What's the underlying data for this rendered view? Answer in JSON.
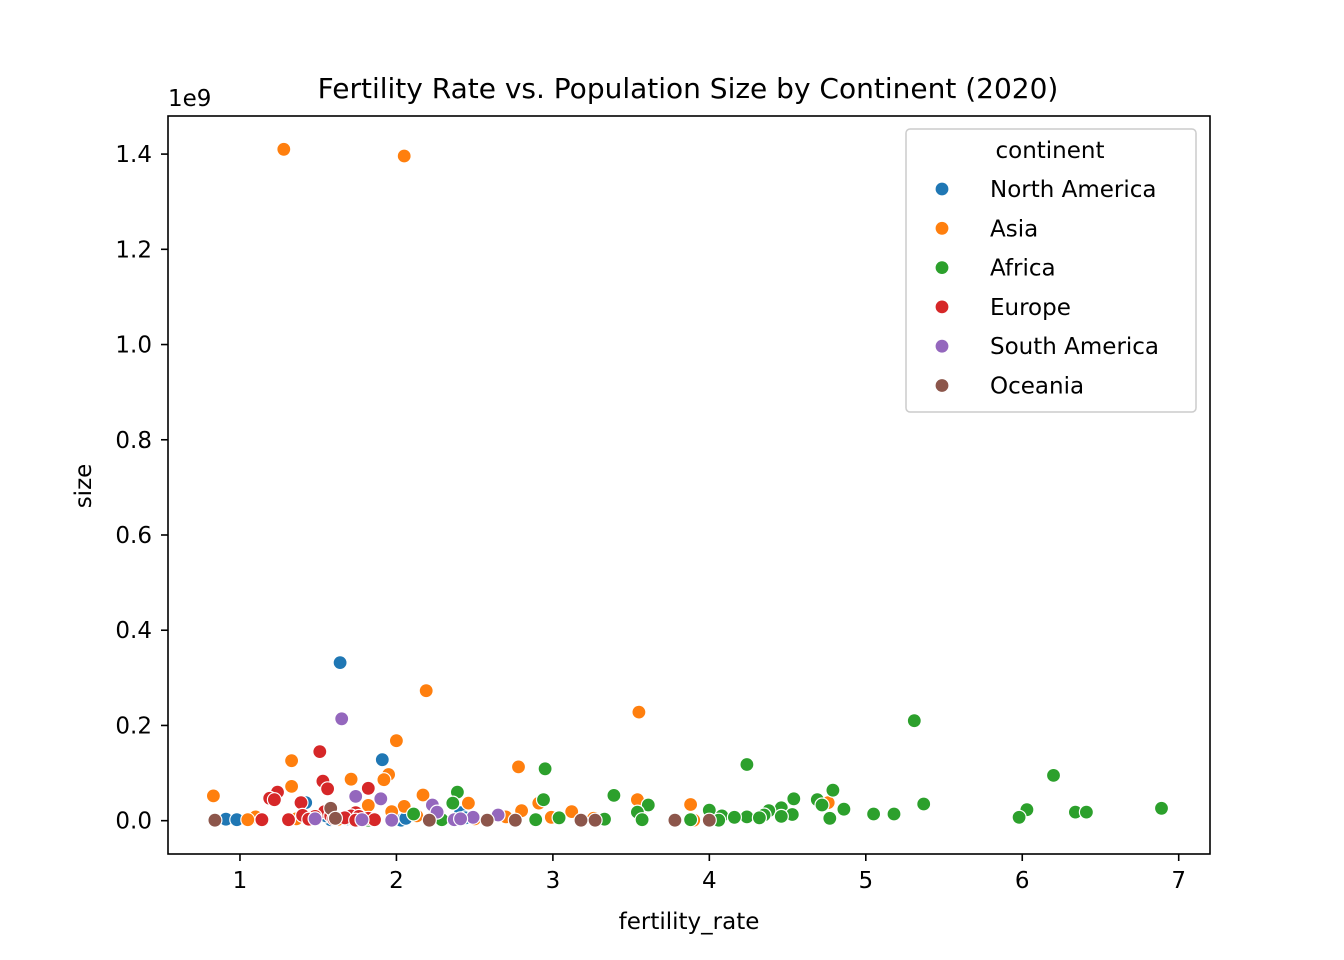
{
  "chart_data": {
    "type": "scatter",
    "title": "Fertility Rate vs. Population Size by Continent (2020)",
    "xlabel": "fertility_rate",
    "ylabel": "size",
    "y_offset_label": "1e9",
    "xlim": [
      0.54,
      7.2
    ],
    "ylim": [
      -70000000,
      1480000000
    ],
    "x_ticks": [
      1,
      2,
      3,
      4,
      5,
      6,
      7
    ],
    "x_tick_labels": [
      "1",
      "2",
      "3",
      "4",
      "5",
      "6",
      "7"
    ],
    "y_ticks": [
      0,
      200000000,
      400000000,
      600000000,
      800000000,
      1000000000,
      1200000000,
      1400000000
    ],
    "y_tick_labels": [
      "0.0",
      "0.2",
      "0.4",
      "0.6",
      "0.8",
      "1.0",
      "1.2",
      "1.4"
    ],
    "grid": false,
    "legend": {
      "title": "continent",
      "placement": "top-right"
    },
    "series": [
      {
        "name": "North America",
        "color": "#1f77b4",
        "points": [
          [
            0.91,
            3000000
          ],
          [
            0.98,
            2000000
          ],
          [
            1.64,
            332000000
          ],
          [
            1.91,
            128000000
          ],
          [
            1.58,
            2000000
          ],
          [
            1.63,
            1000000
          ],
          [
            1.69,
            4000000
          ],
          [
            1.81,
            3000000
          ],
          [
            2.03,
            1000000
          ],
          [
            2.41,
            17000000
          ],
          [
            2.44,
            6000000
          ],
          [
            1.42,
            38000000
          ],
          [
            1.55,
            10000000
          ],
          [
            1.75,
            2000000
          ],
          [
            2.06,
            5000000
          ]
        ]
      },
      {
        "name": "Asia",
        "color": "#ff7f0e",
        "points": [
          [
            1.28,
            1410000000
          ],
          [
            2.05,
            1396000000
          ],
          [
            2.19,
            273000000
          ],
          [
            3.55,
            228000000
          ],
          [
            2.0,
            168000000
          ],
          [
            1.33,
            126000000
          ],
          [
            2.78,
            113000000
          ],
          [
            1.95,
            97000000
          ],
          [
            1.71,
            87000000
          ],
          [
            1.92,
            86000000
          ],
          [
            1.33,
            72000000
          ],
          [
            0.83,
            52000000
          ],
          [
            2.17,
            54000000
          ],
          [
            3.54,
            44000000
          ],
          [
            2.46,
            37000000
          ],
          [
            2.91,
            37000000
          ],
          [
            3.88,
            34000000
          ],
          [
            4.76,
            38000000
          ],
          [
            1.82,
            32000000
          ],
          [
            2.05,
            30000000
          ],
          [
            1.97,
            19000000
          ],
          [
            2.8,
            21000000
          ],
          [
            3.12,
            19000000
          ],
          [
            1.1,
            8000000
          ],
          [
            2.13,
            10000000
          ],
          [
            2.7,
            8000000
          ],
          [
            3.57,
            5000000
          ],
          [
            1.36,
            4000000
          ],
          [
            2.99,
            7000000
          ],
          [
            3.26,
            5000000
          ],
          [
            1.48,
            6000000
          ],
          [
            1.86,
            4000000
          ],
          [
            2.5,
            4000000
          ],
          [
            1.05,
            2000000
          ],
          [
            1.63,
            3000000
          ],
          [
            3.9,
            1000000
          ]
        ]
      },
      {
        "name": "Africa",
        "color": "#2ca02c",
        "points": [
          [
            5.31,
            210000000
          ],
          [
            4.24,
            118000000
          ],
          [
            2.95,
            109000000
          ],
          [
            6.2,
            95000000
          ],
          [
            4.79,
            64000000
          ],
          [
            2.39,
            60000000
          ],
          [
            3.39,
            53000000
          ],
          [
            4.54,
            46000000
          ],
          [
            2.94,
            44000000
          ],
          [
            4.69,
            44000000
          ],
          [
            2.36,
            37000000
          ],
          [
            5.37,
            35000000
          ],
          [
            4.72,
            33000000
          ],
          [
            3.61,
            33000000
          ],
          [
            4.46,
            27000000
          ],
          [
            6.89,
            26000000
          ],
          [
            4.86,
            24000000
          ],
          [
            6.03,
            23000000
          ],
          [
            4.0,
            22000000
          ],
          [
            4.38,
            21000000
          ],
          [
            6.34,
            18000000
          ],
          [
            6.41,
            18000000
          ],
          [
            3.54,
            18000000
          ],
          [
            2.11,
            14000000
          ],
          [
            5.05,
            14000000
          ],
          [
            5.18,
            14000000
          ],
          [
            4.53,
            13000000
          ],
          [
            4.35,
            12000000
          ],
          [
            4.08,
            10000000
          ],
          [
            4.46,
            9000000
          ],
          [
            3.04,
            6000000
          ],
          [
            4.24,
            8000000
          ],
          [
            4.16,
            7000000
          ],
          [
            4.32,
            6000000
          ],
          [
            5.98,
            7000000
          ],
          [
            4.77,
            5000000
          ],
          [
            3.88,
            2000000
          ],
          [
            3.33,
            3000000
          ],
          [
            2.29,
            2000000
          ],
          [
            2.89,
            2000000
          ],
          [
            1.82,
            1000000
          ],
          [
            1.73,
            1000000
          ],
          [
            4.06,
            1000000
          ],
          [
            3.57,
            2000000
          ]
        ]
      },
      {
        "name": "Europe",
        "color": "#d62728",
        "points": [
          [
            1.51,
            145000000
          ],
          [
            1.53,
            83000000
          ],
          [
            1.82,
            68000000
          ],
          [
            1.56,
            67000000
          ],
          [
            1.24,
            60000000
          ],
          [
            1.19,
            47000000
          ],
          [
            1.22,
            44000000
          ],
          [
            1.39,
            38000000
          ],
          [
            1.57,
            25000000
          ],
          [
            1.54,
            19000000
          ],
          [
            1.74,
            17000000
          ],
          [
            1.4,
            11000000
          ],
          [
            1.71,
            10000000
          ],
          [
            1.58,
            10000000
          ],
          [
            1.76,
            9000000
          ],
          [
            1.48,
            9000000
          ],
          [
            1.31,
            2000000
          ],
          [
            1.14,
            2000000
          ],
          [
            1.67,
            6000000
          ],
          [
            1.82,
            5000000
          ],
          [
            1.86,
            2000000
          ],
          [
            1.6,
            4000000
          ],
          [
            1.44,
            3000000
          ],
          [
            1.74,
            1000000
          ]
        ]
      },
      {
        "name": "South America",
        "color": "#9467bd",
        "points": [
          [
            1.65,
            214000000
          ],
          [
            1.74,
            51000000
          ],
          [
            1.9,
            46000000
          ],
          [
            2.23,
            33000000
          ],
          [
            2.37,
            2000000
          ],
          [
            2.49,
            7000000
          ],
          [
            1.48,
            4000000
          ],
          [
            2.65,
            12000000
          ],
          [
            2.41,
            4000000
          ],
          [
            1.78,
            2000000
          ],
          [
            1.97,
            1000000
          ],
          [
            2.26,
            18000000
          ]
        ]
      },
      {
        "name": "Oceania",
        "color": "#8c564b",
        "points": [
          [
            0.84,
            1000000
          ],
          [
            1.58,
            26000000
          ],
          [
            1.61,
            5000000
          ],
          [
            3.18,
            1000000
          ],
          [
            3.27,
            1000000
          ],
          [
            3.78,
            1000000
          ],
          [
            4.0,
            1000000
          ],
          [
            2.58,
            1000000
          ],
          [
            2.76,
            1000000
          ],
          [
            2.21,
            1000000
          ]
        ]
      }
    ]
  }
}
